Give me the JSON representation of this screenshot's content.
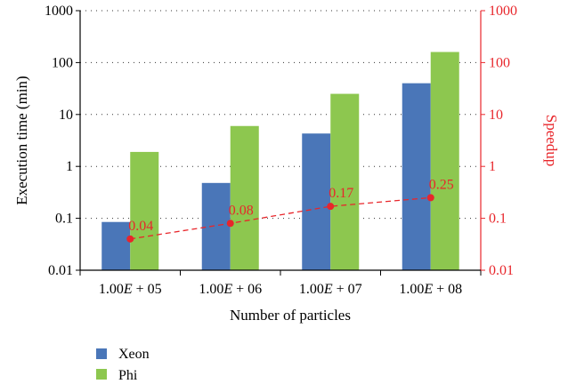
{
  "chart_data": {
    "type": "bar",
    "categories": [
      "1.00E + 05",
      "1.00E + 06",
      "1.00E + 07",
      "1.00E + 08"
    ],
    "series": [
      {
        "name": "Xeon",
        "values": [
          0.085,
          0.48,
          4.3,
          40
        ],
        "color": "#4a76b8",
        "axis": "left"
      },
      {
        "name": "Phi",
        "values": [
          1.9,
          6.0,
          25,
          160
        ],
        "color": "#8dc74f",
        "axis": "left"
      }
    ],
    "speedup": {
      "values": [
        0.04,
        0.08,
        0.17,
        0.25
      ],
      "labels": [
        "0.04",
        "0.08",
        "0.17",
        "0.25"
      ],
      "color": "#e8262b",
      "axis": "right",
      "style": "dashed-line-with-markers"
    },
    "xlabel": "Number of particles",
    "ylabel": "Execution time (min)",
    "y2label": "Speedup",
    "yscale": "log",
    "ylim": [
      0.01,
      1000
    ],
    "y2lim": [
      0.01,
      1000
    ],
    "yticks": [
      "0.01",
      "0.1",
      "1",
      "10",
      "100",
      "1000"
    ],
    "y2ticks": [
      "0.01",
      "0.1",
      "1",
      "10",
      "100",
      "1000"
    ],
    "grid": "horizontal dotted",
    "legend_position": "bottom-left"
  }
}
